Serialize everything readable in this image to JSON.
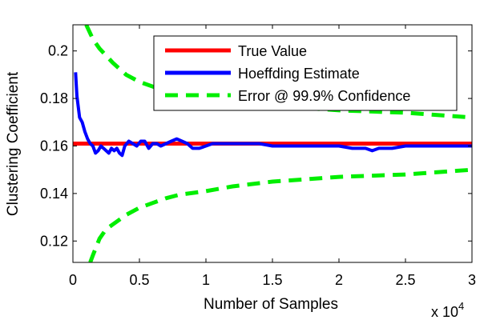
{
  "chart_data": {
    "type": "line",
    "title": "",
    "xlabel": "Number of Samples",
    "ylabel": "Clustering Coefficient",
    "x_multiplier_label": "x 10",
    "x_multiplier_exponent": "4",
    "xlim": [
      0,
      3
    ],
    "ylim": [
      0.111,
      0.211
    ],
    "x_ticks": [
      {
        "value": 0,
        "label": "0"
      },
      {
        "value": 0.5,
        "label": "0.5"
      },
      {
        "value": 1,
        "label": "1"
      },
      {
        "value": 1.5,
        "label": "1.5"
      },
      {
        "value": 2,
        "label": "2"
      },
      {
        "value": 2.5,
        "label": "2.5"
      },
      {
        "value": 3,
        "label": "3"
      }
    ],
    "y_ticks": [
      {
        "value": 0.12,
        "label": "0.12"
      },
      {
        "value": 0.14,
        "label": "0.14"
      },
      {
        "value": 0.16,
        "label": "0.16"
      },
      {
        "value": 0.18,
        "label": "0.18"
      },
      {
        "value": 0.2,
        "label": "0.2"
      }
    ],
    "legend_position": "top-right",
    "series": [
      {
        "name": "True Value",
        "color": "#ff0000",
        "style": "solid",
        "x": [
          0,
          3
        ],
        "y": [
          0.161,
          0.161
        ]
      },
      {
        "name": "Hoeffding Estimate",
        "color": "#0000ff",
        "style": "solid",
        "x": [
          0.02,
          0.03,
          0.05,
          0.07,
          0.09,
          0.11,
          0.13,
          0.15,
          0.17,
          0.19,
          0.21,
          0.23,
          0.25,
          0.27,
          0.29,
          0.31,
          0.33,
          0.35,
          0.37,
          0.39,
          0.42,
          0.45,
          0.48,
          0.51,
          0.54,
          0.57,
          0.6,
          0.63,
          0.66,
          0.7,
          0.74,
          0.78,
          0.82,
          0.86,
          0.9,
          0.95,
          1.0,
          1.05,
          1.1,
          1.2,
          1.3,
          1.4,
          1.5,
          1.6,
          1.7,
          1.8,
          1.9,
          2.0,
          2.1,
          2.2,
          2.25,
          2.3,
          2.4,
          2.5,
          2.6,
          2.7,
          2.8,
          2.9,
          3.0
        ],
        "y": [
          0.191,
          0.181,
          0.172,
          0.17,
          0.166,
          0.163,
          0.161,
          0.16,
          0.157,
          0.158,
          0.16,
          0.159,
          0.158,
          0.157,
          0.159,
          0.158,
          0.159,
          0.157,
          0.156,
          0.16,
          0.162,
          0.161,
          0.16,
          0.162,
          0.162,
          0.159,
          0.161,
          0.161,
          0.16,
          0.161,
          0.162,
          0.163,
          0.162,
          0.161,
          0.159,
          0.159,
          0.16,
          0.161,
          0.161,
          0.161,
          0.161,
          0.161,
          0.16,
          0.16,
          0.16,
          0.16,
          0.16,
          0.16,
          0.159,
          0.159,
          0.158,
          0.159,
          0.159,
          0.16,
          0.16,
          0.16,
          0.16,
          0.16,
          0.16
        ]
      },
      {
        "name": "Error @ 99.9% Confidence",
        "color": "#00ee00",
        "style": "dashed",
        "upper": {
          "x": [
            0.1,
            0.15,
            0.2,
            0.25,
            0.3,
            0.4,
            0.5,
            0.6,
            0.7,
            0.8,
            1.0,
            1.2,
            1.5,
            1.75,
            2.0,
            2.25,
            2.5,
            2.75,
            3.0
          ],
          "y": [
            0.211,
            0.205,
            0.201,
            0.198,
            0.195,
            0.19,
            0.187,
            0.185,
            0.183,
            0.182,
            0.18,
            0.179,
            0.177,
            0.176,
            0.175,
            0.1745,
            0.174,
            0.173,
            0.172
          ]
        },
        "lower": {
          "x": [
            0.13,
            0.15,
            0.2,
            0.25,
            0.3,
            0.4,
            0.5,
            0.6,
            0.7,
            0.8,
            1.0,
            1.2,
            1.5,
            1.75,
            2.0,
            2.25,
            2.5,
            2.75,
            3.0
          ],
          "y": [
            0.111,
            0.114,
            0.121,
            0.125,
            0.127,
            0.131,
            0.134,
            0.136,
            0.138,
            0.1395,
            0.141,
            0.143,
            0.145,
            0.146,
            0.147,
            0.1475,
            0.148,
            0.149,
            0.15
          ]
        }
      }
    ]
  }
}
